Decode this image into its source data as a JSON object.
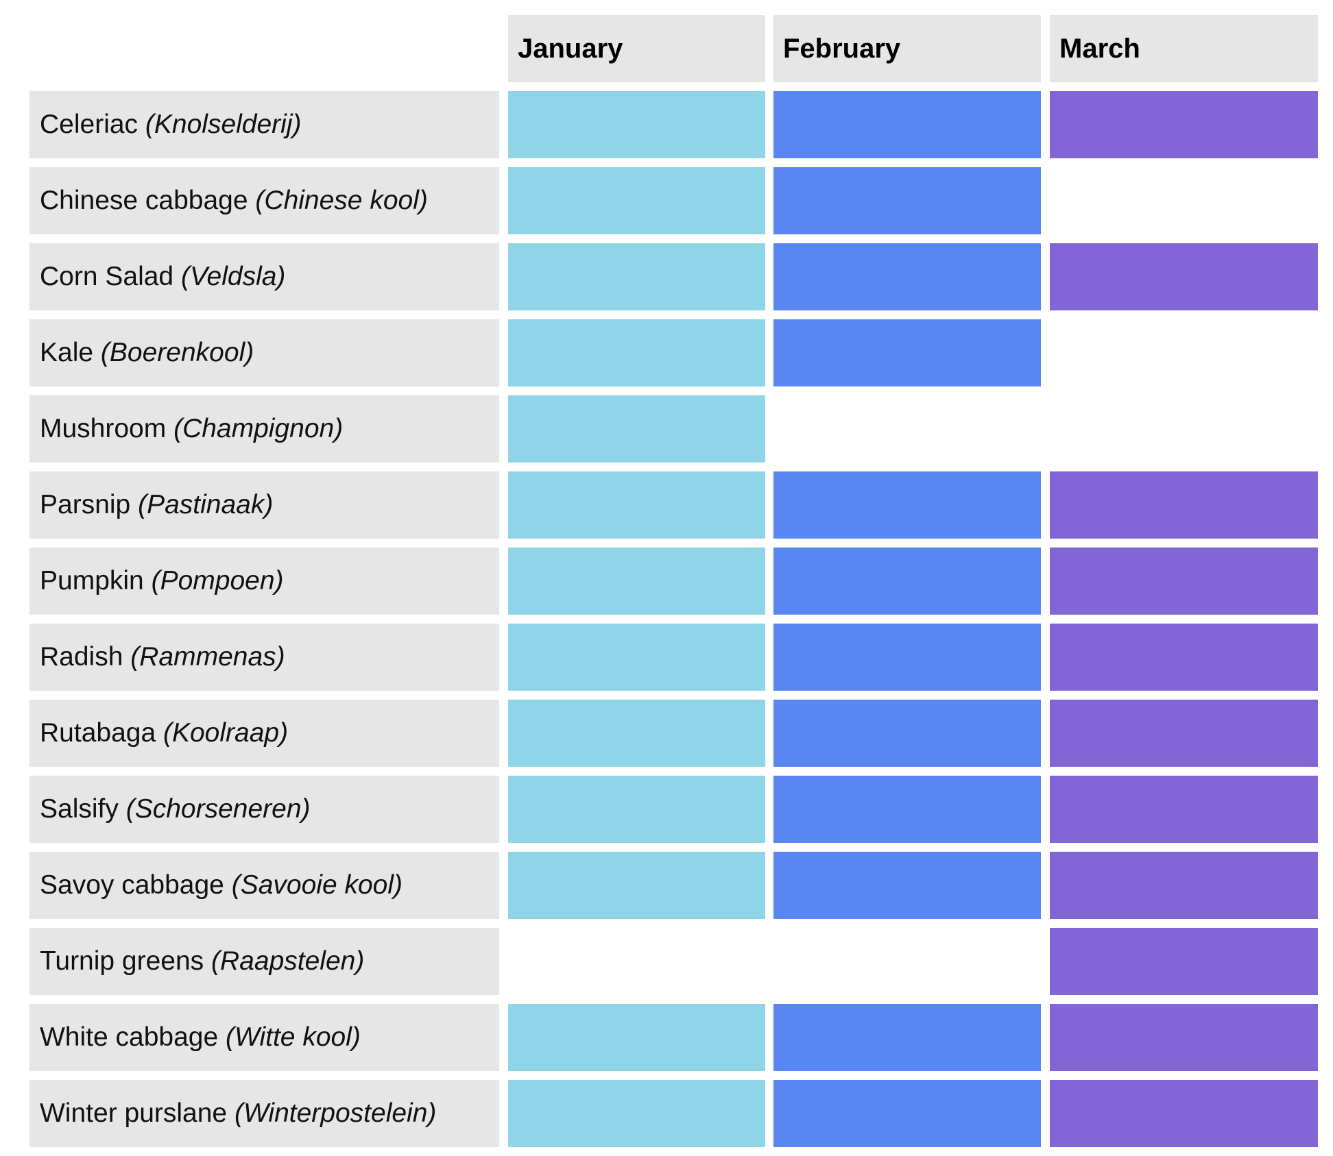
{
  "chart_data": {
    "type": "table",
    "columns": [
      "January",
      "February",
      "March"
    ],
    "colors": {
      "January": "#8fd5e7",
      "February": "#5a86f2",
      "March": "#8366d6",
      "label_bg": "#e6e6e6",
      "header_bg": "#e6e6e6"
    },
    "rows": [
      {
        "name": "Celeriac",
        "dutch": "(Knolselderij)",
        "months": [
          true,
          true,
          true
        ]
      },
      {
        "name": "Chinese cabbage",
        "dutch": "(Chinese kool)",
        "months": [
          true,
          true,
          false
        ]
      },
      {
        "name": "Corn Salad",
        "dutch": "(Veldsla)",
        "months": [
          true,
          true,
          true
        ]
      },
      {
        "name": "Kale",
        "dutch": "(Boerenkool)",
        "months": [
          true,
          true,
          false
        ]
      },
      {
        "name": "Mushroom",
        "dutch": "(Champignon)",
        "months": [
          true,
          false,
          false
        ]
      },
      {
        "name": "Parsnip",
        "dutch": "(Pastinaak)",
        "months": [
          true,
          true,
          true
        ]
      },
      {
        "name": "Pumpkin",
        "dutch": "(Pompoen)",
        "months": [
          true,
          true,
          true
        ]
      },
      {
        "name": "Radish",
        "dutch": "(Rammenas)",
        "months": [
          true,
          true,
          true
        ]
      },
      {
        "name": "Rutabaga",
        "dutch": "(Koolraap)",
        "months": [
          true,
          true,
          true
        ]
      },
      {
        "name": "Salsify",
        "dutch": "(Schorseneren)",
        "months": [
          true,
          true,
          true
        ]
      },
      {
        "name": "Savoy cabbage",
        "dutch": "(Savooie kool)",
        "months": [
          true,
          true,
          true
        ]
      },
      {
        "name": "Turnip greens",
        "dutch": "(Raapstelen)",
        "months": [
          false,
          false,
          true
        ]
      },
      {
        "name": "White cabbage",
        "dutch": "(Witte kool)",
        "months": [
          true,
          true,
          true
        ]
      },
      {
        "name": "Winter purslane",
        "dutch": "(Winterpostelein)",
        "months": [
          true,
          true,
          true
        ]
      }
    ]
  }
}
